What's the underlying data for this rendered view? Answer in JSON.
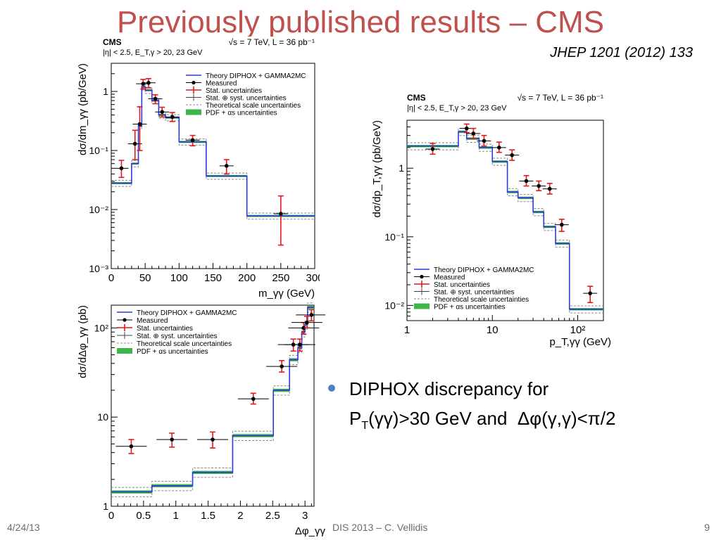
{
  "slide": {
    "title": "Previously published results – CMS",
    "reference": "JHEP 1201 (2012) 133",
    "bullet": "DIPHOX discrepancy for P_T(γγ)>30 GeV and  Δφ(γ,γ)<π/2",
    "footer_date": "4/24/13",
    "footer_center": "DIS 2013 – C. Vellidis",
    "footer_page": "9"
  },
  "chart_data": [
    {
      "type": "line",
      "header": "CMS",
      "energy": "√s = 7 TeV, L = 36 pb⁻¹",
      "cuts": "|η| < 2.5, E_T,γ > 20, 23 GeV",
      "xlabel": "m_γγ (GeV)",
      "ylabel": "dσ/dm_γγ (pb/GeV)",
      "xscale": "linear",
      "yscale": "log",
      "xlim": [
        0,
        300
      ],
      "ylim": [
        0.001,
        3
      ],
      "xticks": [
        "0",
        "50",
        "100",
        "150",
        "200",
        "250",
        "300"
      ],
      "yticks": [
        "10⁻³",
        "10⁻²",
        "10⁻¹",
        "1"
      ],
      "legend": [
        "Theory DIPHOX + GAMMA2MC",
        "Measured",
        "Stat. uncertainties",
        "Stat. ⊕ syst. uncertainties",
        "Theoretical scale uncertainties",
        "PDF + αs uncertainties"
      ],
      "theory_bins": {
        "edges": [
          0,
          30,
          40,
          45,
          50,
          60,
          70,
          80,
          100,
          140,
          200,
          300
        ],
        "values": [
          0.028,
          0.06,
          0.26,
          1.2,
          1.05,
          0.7,
          0.4,
          0.36,
          0.14,
          0.037,
          0.0078
        ]
      },
      "measured": {
        "x": [
          15,
          35,
          42,
          47,
          55,
          65,
          75,
          90,
          120,
          170,
          250
        ],
        "y": [
          0.05,
          0.13,
          0.28,
          1.35,
          1.4,
          0.75,
          0.45,
          0.37,
          0.15,
          0.055,
          0.0085
        ],
        "stat_lo": [
          0.035,
          0.07,
          0.1,
          1.1,
          1.15,
          0.62,
          0.37,
          0.31,
          0.12,
          0.04,
          0.0025
        ],
        "stat_hi": [
          0.068,
          0.22,
          0.55,
          1.6,
          1.65,
          0.88,
          0.54,
          0.44,
          0.18,
          0.07,
          0.017
        ]
      }
    },
    {
      "type": "line",
      "header": "CMS",
      "energy": "√s = 7 TeV, L = 36 pb⁻¹",
      "cuts": "|η| < 2.5, E_T,γ > 20, 23 GeV",
      "xlabel": "p_T,γγ (GeV)",
      "ylabel": "dσ/dp_T,γγ (pb/GeV)",
      "xscale": "log",
      "yscale": "log",
      "xlim": [
        1,
        200
      ],
      "ylim": [
        0.006,
        5
      ],
      "xticks": [
        "1",
        "10",
        "10²"
      ],
      "yticks": [
        "10⁻²",
        "10⁻¹",
        "1"
      ],
      "legend": [
        "Theory DIPHOX + GAMMA2MC",
        "Measured",
        "Stat. uncertainties",
        "Stat. ⊕ syst. uncertainties",
        "Theoretical scale uncertainties",
        "PDF + αs uncertainties"
      ],
      "theory_bins": {
        "edges": [
          1,
          4,
          5,
          7,
          10,
          15,
          20,
          30,
          40,
          55,
          80,
          200
        ],
        "values": [
          2.1,
          3.4,
          2.7,
          2.0,
          1.25,
          0.45,
          0.37,
          0.23,
          0.14,
          0.08,
          0.0088
        ]
      },
      "measured": {
        "x": [
          2,
          5,
          6,
          8,
          12,
          17,
          25,
          35,
          47,
          65,
          140
        ],
        "y": [
          1.9,
          3.8,
          3.2,
          2.5,
          2.0,
          1.55,
          0.65,
          0.55,
          0.5,
          0.15,
          0.015
        ],
        "stat_lo": [
          1.6,
          3.3,
          2.7,
          2.1,
          1.7,
          1.3,
          0.55,
          0.47,
          0.42,
          0.12,
          0.011
        ],
        "stat_hi": [
          2.3,
          4.4,
          3.8,
          3.0,
          2.4,
          1.85,
          0.78,
          0.65,
          0.6,
          0.18,
          0.019
        ]
      }
    },
    {
      "type": "line",
      "xlabel": "Δφ_γγ",
      "ylabel": "dσ/dΔφ_γγ (pb)",
      "xscale": "linear",
      "yscale": "log",
      "xlim": [
        0,
        3.14
      ],
      "ylim": [
        1,
        180
      ],
      "xticks": [
        "0",
        "0.5",
        "1",
        "1.5",
        "2",
        "2.5",
        "3"
      ],
      "yticks": [
        "1",
        "10",
        "10²"
      ],
      "legend": [
        "Theory DIPHOX + GAMMA2MC",
        "Measured",
        "Stat. uncertainties",
        "Stat. ⊕ syst. uncertainties",
        "Theoretical scale uncertainties",
        "PDF + αs uncertainties"
      ],
      "theory_bins": {
        "edges": [
          0,
          0.63,
          1.26,
          1.88,
          2.51,
          2.76,
          2.89,
          2.95,
          3.0,
          3.04,
          3.14
        ],
        "values": [
          1.45,
          1.7,
          2.4,
          6.2,
          20,
          44,
          60,
          90,
          110,
          170
        ]
      },
      "measured": {
        "x": [
          0.31,
          0.94,
          1.57,
          2.2,
          2.64,
          2.82,
          2.92,
          2.98,
          3.03,
          3.1
        ],
        "y": [
          4.7,
          5.6,
          5.6,
          16,
          37,
          65,
          65,
          100,
          115,
          140
        ],
        "stat_lo": [
          3.9,
          4.6,
          4.5,
          14,
          32,
          55,
          55,
          85,
          100,
          120
        ],
        "stat_hi": [
          5.6,
          6.6,
          6.8,
          18.5,
          43,
          75,
          75,
          115,
          135,
          160
        ]
      }
    }
  ]
}
